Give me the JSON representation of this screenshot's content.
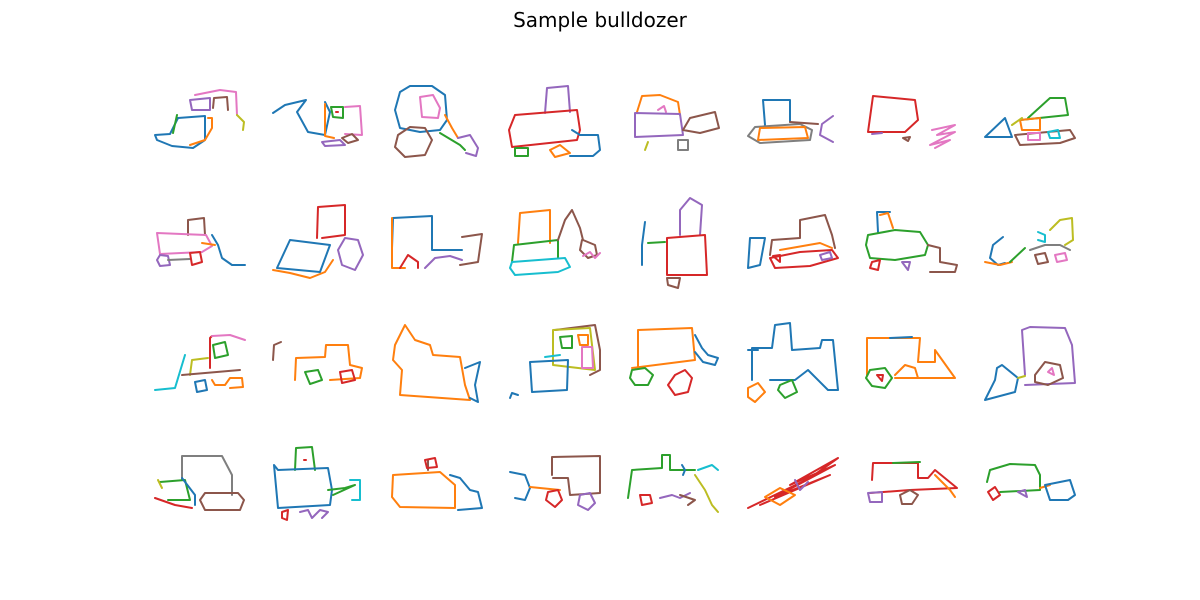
{
  "title": "Sample bulldozer",
  "grid": {
    "rows": 4,
    "cols": 8
  },
  "palette": {
    "blue": "#1f77b4",
    "orange": "#ff7f0e",
    "green": "#2ca02c",
    "red": "#d62728",
    "purple": "#9467bd",
    "brown": "#8c564b",
    "pink": "#e377c2",
    "gray": "#7f7f7f",
    "olive": "#bcbd22",
    "cyan": "#17becf"
  }
}
